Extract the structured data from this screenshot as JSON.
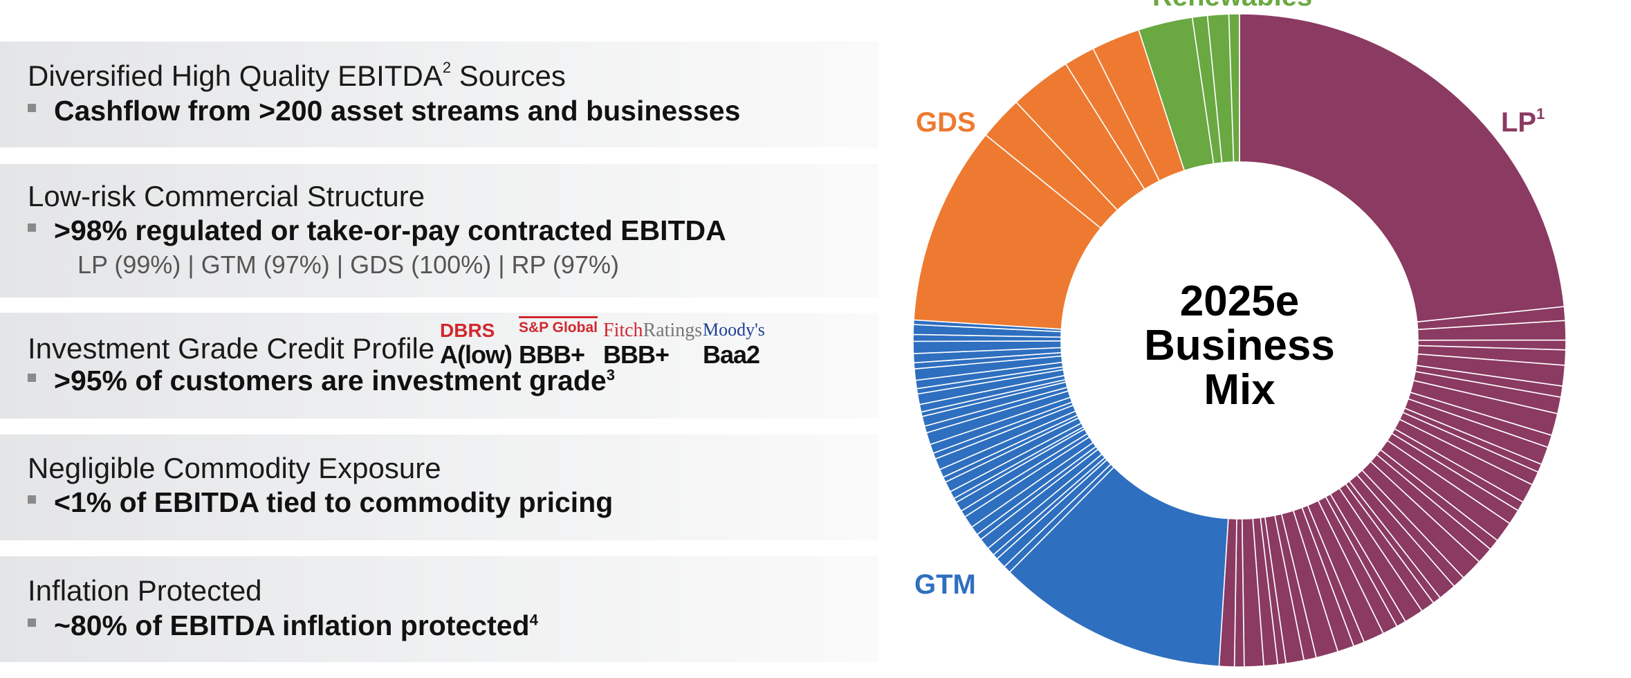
{
  "panels": [
    {
      "title": "Diversified High Quality EBITDA",
      "title_sup": "2",
      "title_suffix": " Sources",
      "bullet": "Cashflow from >200 asset streams and businesses"
    },
    {
      "title": "Low-risk Commercial Structure",
      "bullet": ">98% regulated or take-or-pay contracted EBITDA",
      "sub": "LP (99%) | GTM (97%) | GDS (100%) | RP (97%)"
    },
    {
      "title": "Investment Grade Credit Profile",
      "bullet": ">95% of customers are investment grade",
      "bullet_sup": "3"
    },
    {
      "title": "Negligible Commodity Exposure",
      "bullet": "<1% of EBITDA tied to commodity pricing"
    },
    {
      "title": "Inflation Protected",
      "bullet": "~80% of EBITDA inflation protected",
      "bullet_sup": "4"
    }
  ],
  "ratings": [
    {
      "agency": "DBRS",
      "grade": "A(low)"
    },
    {
      "agency": "S&P Global",
      "grade": "BBB+"
    },
    {
      "agency_main": "Fitch",
      "agency_rest": "Ratings",
      "grade": "BBB+"
    },
    {
      "agency": "Moody's",
      "grade": "Baa2"
    }
  ],
  "chart_data": {
    "type": "pie",
    "style": "donut",
    "center_text": [
      "2025e",
      "Business",
      "Mix"
    ],
    "segments": [
      {
        "name": "LP",
        "sup": "1",
        "color": "#8b3a62",
        "share": 0.51,
        "streams": 38
      },
      {
        "name": "GTM",
        "color": "#2e6fbf",
        "share": 0.25,
        "streams": 34
      },
      {
        "name": "GDS",
        "color": "#ed7a30",
        "share": 0.19,
        "streams": 5
      },
      {
        "name": "Renewables",
        "color": "#6aa842",
        "share": 0.05,
        "streams": 4
      }
    ],
    "legend": "labels-around"
  }
}
